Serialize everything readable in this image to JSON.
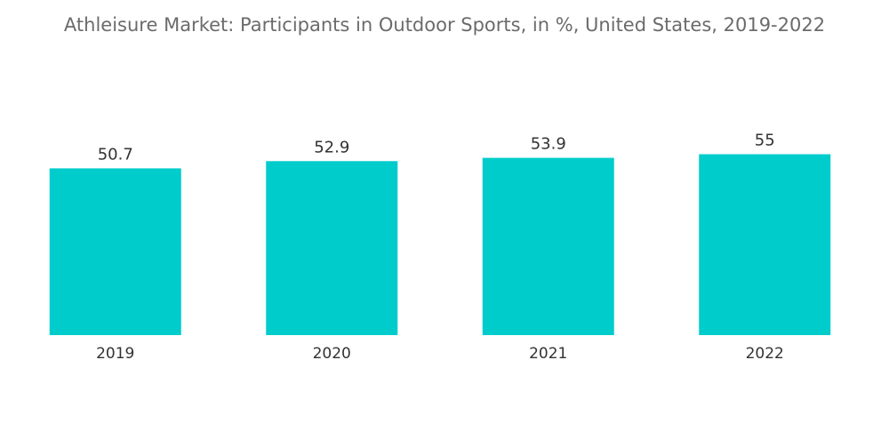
{
  "chart_data": {
    "type": "bar",
    "title": "Athleisure Market: Participants in Outdoor Sports, in %, United States, 2019-2022",
    "categories": [
      "2019",
      "2020",
      "2021",
      "2022"
    ],
    "values": [
      50.7,
      52.9,
      53.9,
      55
    ],
    "value_labels": [
      "50.7",
      "52.9",
      "53.9",
      "55"
    ],
    "xlabel": "",
    "ylabel": "",
    "ylim": [
      0,
      55
    ],
    "grid": false,
    "legend": "none",
    "bar_color": "#00cccc"
  }
}
